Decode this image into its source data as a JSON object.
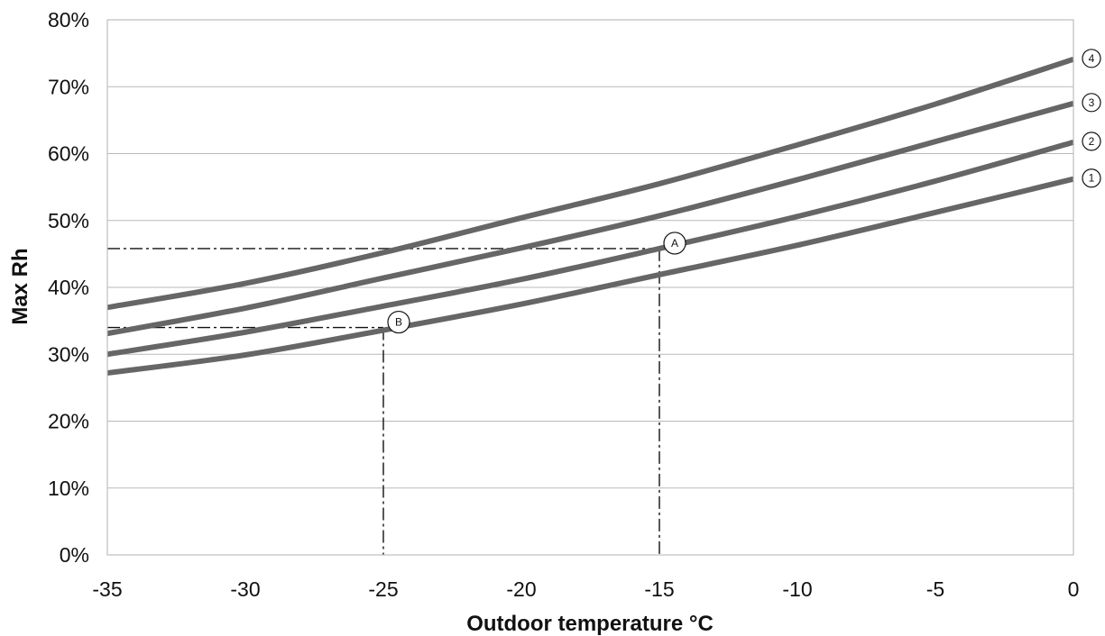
{
  "chart_data": {
    "type": "line",
    "xlabel": "Outdoor temperature °C",
    "ylabel": "Max Rh",
    "xlim": [
      -35,
      0
    ],
    "ylim": [
      0,
      80
    ],
    "x_ticks": [
      -35,
      -30,
      -25,
      -20,
      -15,
      -10,
      -5,
      0
    ],
    "x_tick_labels": [
      "-35",
      "-30",
      "-25",
      "-20",
      "-15",
      "-10",
      "-5",
      "0"
    ],
    "y_ticks": [
      0,
      10,
      20,
      30,
      40,
      50,
      60,
      70,
      80
    ],
    "y_tick_labels": [
      "0%",
      "10%",
      "20%",
      "30%",
      "40%",
      "50%",
      "60%",
      "70%",
      "80%"
    ],
    "grid": "horizontal",
    "line_color": "#666666",
    "series": [
      {
        "name": "1",
        "x": [
          -35,
          -30,
          -25,
          -20,
          -15,
          -10,
          -5,
          0
        ],
        "values": [
          27.2,
          29.9,
          33.6,
          37.5,
          41.9,
          46.3,
          51.2,
          56.2
        ]
      },
      {
        "name": "2",
        "x": [
          -35,
          -30,
          -25,
          -20,
          -15,
          -10,
          -5,
          0
        ],
        "values": [
          30.0,
          33.3,
          37.2,
          41.2,
          45.8,
          50.6,
          55.9,
          61.7
        ]
      },
      {
        "name": "3",
        "x": [
          -35,
          -30,
          -25,
          -20,
          -15,
          -10,
          -5,
          0
        ],
        "values": [
          33.1,
          36.9,
          41.4,
          45.9,
          50.7,
          56.1,
          61.8,
          67.5
        ]
      },
      {
        "name": "4",
        "x": [
          -35,
          -30,
          -25,
          -20,
          -15,
          -10,
          -5,
          0
        ],
        "values": [
          37.0,
          40.6,
          45.2,
          50.4,
          55.5,
          61.3,
          67.4,
          74.1
        ]
      }
    ],
    "reference_points": [
      {
        "label": "A",
        "x": -15,
        "y": 45.8
      },
      {
        "label": "B",
        "x": -25,
        "y": 34.0
      }
    ]
  }
}
